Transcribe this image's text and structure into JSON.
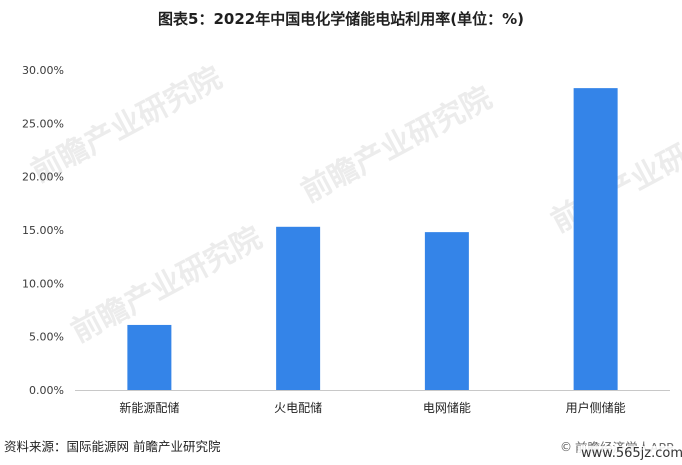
{
  "chart_data": {
    "type": "bar",
    "title": "图表5：2022年中国电化学储能电站利用率(单位：%)",
    "categories": [
      "新能源配储",
      "火电配储",
      "电网储能",
      "用户侧储能"
    ],
    "values": [
      6.1,
      15.3,
      14.8,
      28.3
    ],
    "unit": "%",
    "yticks": [
      "0.00%",
      "5.00%",
      "10.00%",
      "15.00%",
      "20.00%",
      "25.00%",
      "30.00%"
    ],
    "ylim": [
      0,
      30
    ],
    "grid": false,
    "xlabel": "",
    "ylabel": "",
    "bar_color": "#3484e8"
  },
  "footer": {
    "source": "资料来源：国际能源网 前瞻产业研究院",
    "brand": "前瞻经济学人APP",
    "site_url": "www.565jz.com"
  },
  "watermark": {
    "text": "前瞻产业研究院"
  }
}
